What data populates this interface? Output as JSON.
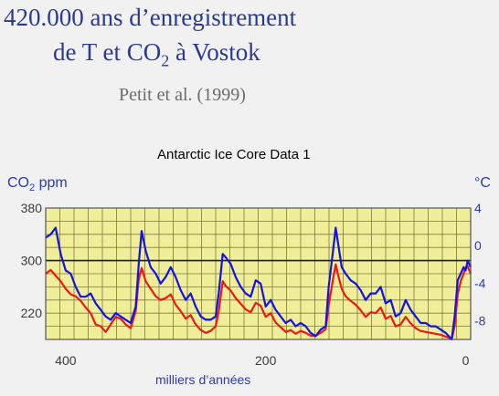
{
  "slide": {
    "title_line1": "420.000 ans d’enregistrement",
    "title_line2_pre": "de T et CO",
    "title_line2_sub": "2",
    "title_line2_post": " à Vostok",
    "citation": "Petit et al. (1999)"
  },
  "chart_data": {
    "type": "line",
    "title": "Antarctic Ice Core Data 1",
    "xlabel": "milliers d’années",
    "ylabel_left_pre": "CO",
    "ylabel_left_sub": "2",
    "ylabel_left_post": " ppm",
    "ylabel_right": "°C",
    "x_reversed": true,
    "xlim": [
      420,
      -5
    ],
    "ylim_left": [
      180,
      380
    ],
    "ylim_right": [
      -10,
      4
    ],
    "x_ticks": [
      400,
      200,
      0
    ],
    "left_ticks": [
      220,
      300,
      380
    ],
    "right_ticks": [
      4,
      0,
      -4,
      -8
    ],
    "reference_line": {
      "axis": "left",
      "value": 300
    },
    "grid": true,
    "background_color": "#f0ee98",
    "grid_color": "#7c7c3c",
    "series": [
      {
        "axis": "left",
        "color": "#1212e6",
        "x": [
          420,
          415,
          410,
          405,
          400,
          395,
          390,
          385,
          380,
          375,
          370,
          365,
          360,
          355,
          350,
          345,
          340,
          335,
          330,
          327,
          324,
          320,
          315,
          310,
          305,
          300,
          295,
          290,
          285,
          280,
          275,
          270,
          265,
          260,
          255,
          250,
          247,
          243,
          240,
          235,
          230,
          225,
          220,
          215,
          210,
          205,
          200,
          195,
          190,
          185,
          180,
          175,
          170,
          165,
          160,
          155,
          150,
          145,
          140,
          137,
          133,
          130,
          127,
          124,
          120,
          115,
          110,
          105,
          100,
          95,
          90,
          85,
          80,
          75,
          70,
          65,
          60,
          55,
          50,
          45,
          40,
          35,
          30,
          25,
          20,
          17,
          14,
          11,
          8,
          5,
          2,
          0,
          -2,
          -5
        ],
        "values": [
          335,
          340,
          350,
          310,
          285,
          280,
          260,
          245,
          245,
          250,
          235,
          225,
          215,
          210,
          220,
          215,
          210,
          205,
          230,
          295,
          345,
          315,
          290,
          280,
          265,
          275,
          290,
          275,
          255,
          240,
          250,
          230,
          215,
          210,
          210,
          215,
          250,
          310,
          305,
          295,
          275,
          260,
          250,
          245,
          270,
          265,
          230,
          240,
          225,
          215,
          205,
          210,
          200,
          205,
          200,
          190,
          185,
          195,
          200,
          260,
          310,
          350,
          320,
          290,
          280,
          270,
          265,
          255,
          240,
          250,
          250,
          260,
          235,
          240,
          215,
          220,
          240,
          225,
          215,
          205,
          205,
          200,
          200,
          195,
          190,
          185,
          180,
          215,
          270,
          280,
          290,
          285,
          300,
          290
        ]
      },
      {
        "axis": "right",
        "color": "#ee1818",
        "x": [
          420,
          415,
          410,
          405,
          400,
          395,
          390,
          385,
          380,
          375,
          370,
          365,
          360,
          355,
          350,
          345,
          340,
          335,
          330,
          327,
          324,
          320,
          315,
          310,
          305,
          300,
          295,
          290,
          285,
          280,
          275,
          270,
          265,
          260,
          255,
          250,
          247,
          243,
          240,
          235,
          230,
          225,
          220,
          215,
          210,
          205,
          200,
          195,
          190,
          185,
          180,
          175,
          170,
          165,
          160,
          155,
          150,
          145,
          140,
          137,
          133,
          130,
          127,
          124,
          120,
          115,
          110,
          105,
          100,
          95,
          90,
          85,
          80,
          75,
          70,
          65,
          60,
          55,
          50,
          45,
          40,
          35,
          30,
          25,
          20,
          17,
          14,
          11,
          8,
          5,
          2,
          0,
          -2,
          -5
        ],
        "values": [
          -3,
          -2.6,
          -3.2,
          -3.8,
          -4.6,
          -5.2,
          -5.4,
          -5.9,
          -6.6,
          -7.2,
          -8.4,
          -8.6,
          -9.2,
          -8.4,
          -7.6,
          -7.8,
          -8.4,
          -8.8,
          -7,
          -3.6,
          -2.4,
          -3.8,
          -4.6,
          -5.4,
          -5.8,
          -5.6,
          -5.2,
          -6.3,
          -7,
          -7.8,
          -7.4,
          -8.4,
          -9,
          -9.3,
          -9.1,
          -8.6,
          -7,
          -3.8,
          -4.3,
          -4.8,
          -5.6,
          -6.2,
          -6.8,
          -7.1,
          -6.1,
          -6.4,
          -7.6,
          -7.2,
          -8.2,
          -8.7,
          -9.2,
          -9,
          -9.4,
          -9.1,
          -9.3,
          -9.6,
          -9.6,
          -9.3,
          -8.9,
          -6.4,
          -3.8,
          -2,
          -3.4,
          -4.6,
          -5.4,
          -5.9,
          -6.3,
          -6.9,
          -7.6,
          -7.1,
          -7.2,
          -6.6,
          -7.8,
          -7.5,
          -8.6,
          -8.4,
          -7.6,
          -8.3,
          -8.8,
          -9.1,
          -9.2,
          -9.3,
          -9.4,
          -9.5,
          -9.7,
          -9.8,
          -10,
          -8.6,
          -5.2,
          -3.8,
          -3,
          -2.4,
          -2.2,
          -3
        ]
      }
    ]
  }
}
